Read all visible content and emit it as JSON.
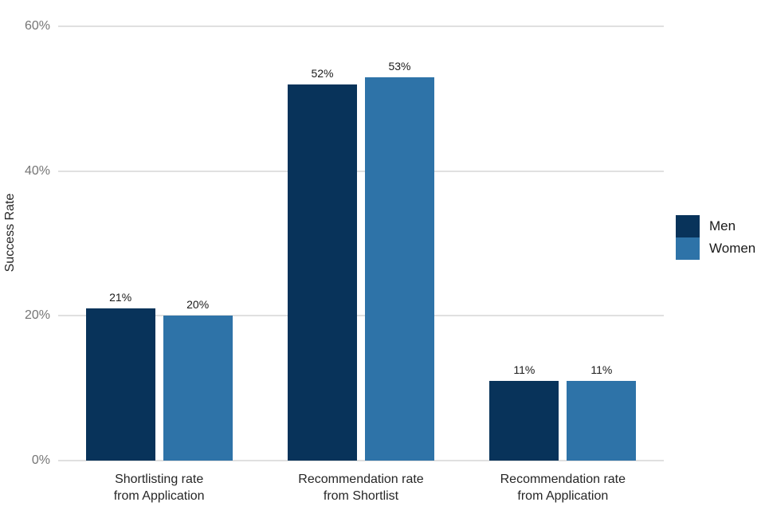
{
  "chart_data": {
    "type": "bar",
    "title": "",
    "xlabel": "",
    "ylabel": "Success Rate",
    "ylim": [
      0,
      60
    ],
    "grid": true,
    "legend_position": "right",
    "yticks": [
      {
        "value": 0,
        "label": "0%"
      },
      {
        "value": 20,
        "label": "20%"
      },
      {
        "value": 40,
        "label": "40%"
      },
      {
        "value": 60,
        "label": "60%"
      }
    ],
    "categories": [
      {
        "lines": [
          "Shortlisting rate",
          "from Application"
        ]
      },
      {
        "lines": [
          "Recommendation rate",
          "from Shortlist"
        ]
      },
      {
        "lines": [
          "Recommendation rate",
          "from Application"
        ]
      }
    ],
    "series": [
      {
        "name": "Men",
        "color": "#08335a",
        "values": [
          21,
          52,
          11
        ],
        "labels": [
          "21%",
          "52%",
          "11%"
        ]
      },
      {
        "name": "Women",
        "color": "#2e73a8",
        "values": [
          20,
          53,
          11
        ],
        "labels": [
          "20%",
          "53%",
          "11%"
        ]
      }
    ]
  }
}
